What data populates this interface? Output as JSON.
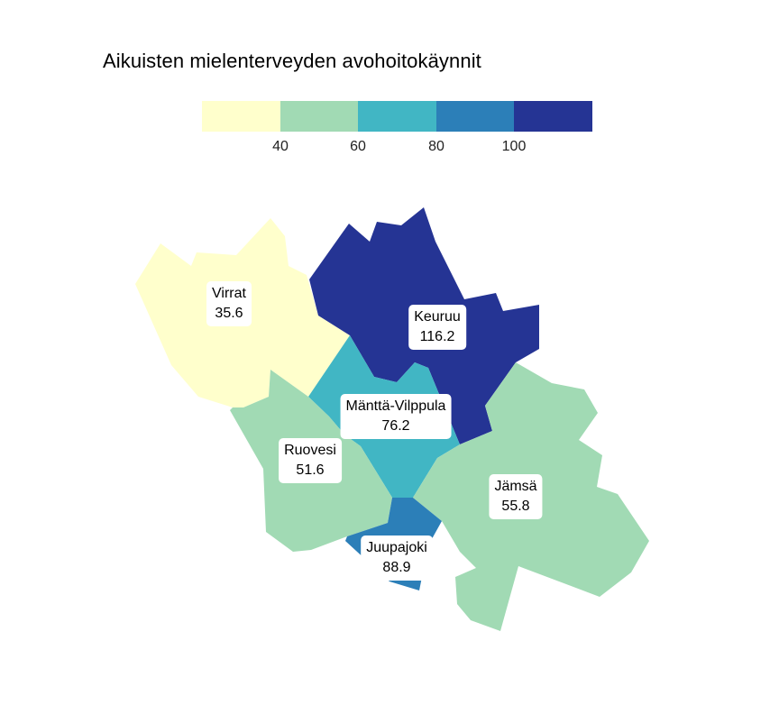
{
  "title": "Aikuisten mielenterveyden avohoitokäynnit",
  "legend": {
    "bins": [
      {
        "color": "#ffffcc"
      },
      {
        "color": "#a1dab4"
      },
      {
        "color": "#41b6c4"
      },
      {
        "color": "#2c7fb8"
      },
      {
        "color": "#253494"
      }
    ],
    "ticks": [
      "40",
      "60",
      "80",
      "100"
    ]
  },
  "regions": [
    {
      "name": "Virrat",
      "value": "35.6",
      "color": "#ffffcc"
    },
    {
      "name": "Keuruu",
      "value": "116.2",
      "color": "#253494"
    },
    {
      "name": "Mänttä-Vilppula",
      "value": "76.2",
      "color": "#41b6c4"
    },
    {
      "name": "Ruovesi",
      "value": "51.6",
      "color": "#a1dab4"
    },
    {
      "name": "Jämsä",
      "value": "55.8",
      "color": "#a1dab4"
    },
    {
      "name": "Juupajoki",
      "value": "88.9",
      "color": "#2c7fb8"
    }
  ]
}
